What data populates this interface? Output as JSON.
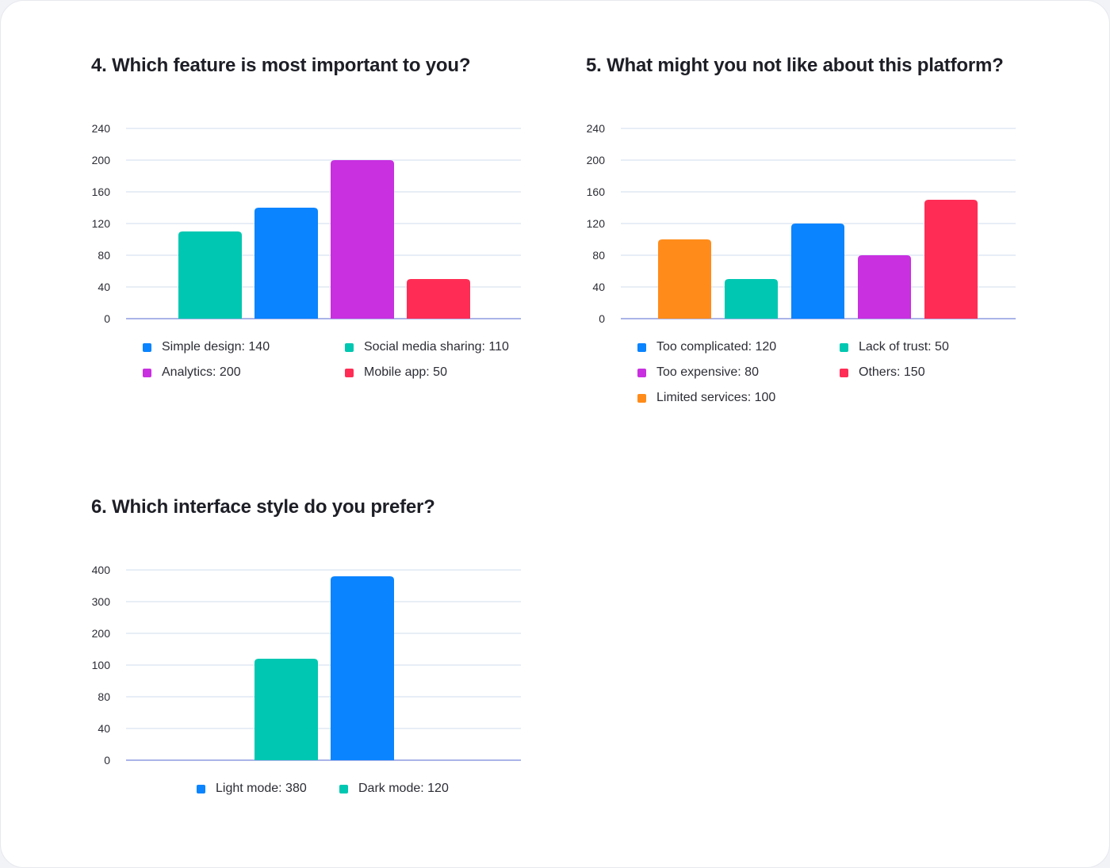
{
  "chart_data": [
    {
      "type": "bar",
      "title": "4. Which feature is most important to you?",
      "categories": [
        "Social media sharing",
        "Simple design",
        "Analytics",
        "Mobile app"
      ],
      "values": [
        110,
        140,
        200,
        50
      ],
      "colors": [
        "#00c7b1",
        "#0a84ff",
        "#c830e0",
        "#ff2d55"
      ],
      "yticks": [
        "0",
        "40",
        "80",
        "120",
        "160",
        "200",
        "240"
      ],
      "ylim": [
        0,
        240
      ],
      "legend": [
        {
          "label": "Simple design: 140",
          "color": "#0a84ff"
        },
        {
          "label": "Social media sharing: 110",
          "color": "#00c7b1"
        },
        {
          "label": "Analytics: 200",
          "color": "#c830e0"
        },
        {
          "label": "Mobile app: 50",
          "color": "#ff2d55"
        }
      ]
    },
    {
      "type": "bar",
      "title": "5. What might you not like about this platform?",
      "categories": [
        "Limited services",
        "Lack of trust",
        "Too complicated",
        "Too expensive",
        "Others"
      ],
      "values": [
        100,
        50,
        120,
        80,
        150
      ],
      "colors": [
        "#ff8c1a",
        "#00c7b1",
        "#0a84ff",
        "#c830e0",
        "#ff2d55"
      ],
      "yticks": [
        "0",
        "40",
        "80",
        "120",
        "160",
        "200",
        "240"
      ],
      "ylim": [
        0,
        240
      ],
      "legend": [
        {
          "label": "Too complicated: 120",
          "color": "#0a84ff"
        },
        {
          "label": "Lack of trust: 50",
          "color": "#00c7b1"
        },
        {
          "label": "Too expensive: 80",
          "color": "#c830e0"
        },
        {
          "label": "Others: 150",
          "color": "#ff2d55"
        },
        {
          "label": "Limited services: 100",
          "color": "#ff8c1a"
        }
      ]
    },
    {
      "type": "bar",
      "title": "6. Which interface style do you prefer?",
      "categories": [
        "Dark mode",
        "Light mode"
      ],
      "values": [
        120,
        380
      ],
      "colors": [
        "#00c7b1",
        "#0a84ff"
      ],
      "yticks": [
        "0",
        "40",
        "80",
        "100",
        "200",
        "300",
        "400"
      ],
      "ylim": [
        0,
        400
      ],
      "legend": [
        {
          "label": "Light mode: 380",
          "color": "#0a84ff"
        },
        {
          "label": "Dark mode: 120",
          "color": "#00c7b1"
        }
      ]
    }
  ]
}
